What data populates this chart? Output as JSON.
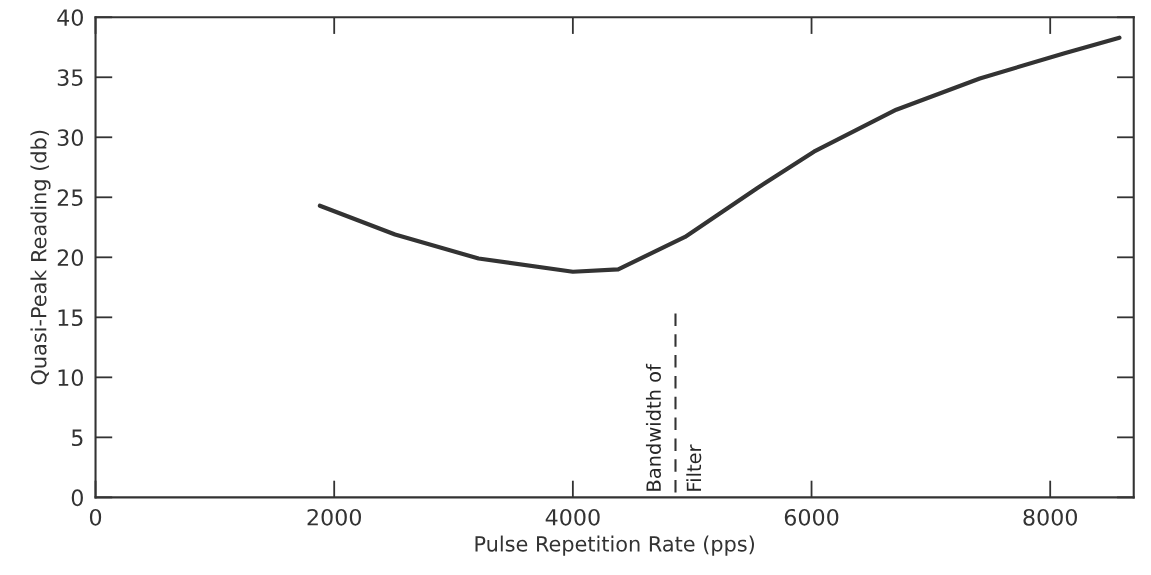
{
  "chart_data": {
    "type": "line",
    "xlabel": "Pulse Repetition Rate (pps)",
    "ylabel": "Quasi-Peak Reading (db)",
    "series": [
      {
        "color": "#333333",
        "x": [
          1880,
          2510,
          3210,
          4000,
          4380,
          4940,
          5550,
          6020,
          6710,
          7410,
          8120,
          8580
        ],
        "values": [
          24.3,
          21.9,
          19.9,
          18.8,
          19.0,
          21.7,
          25.8,
          28.8,
          32.3,
          34.9,
          37.0,
          38.3
        ]
      }
    ],
    "xlim": [
      0,
      8700
    ],
    "ylim": [
      0,
      40
    ],
    "xticks": [
      0,
      2000,
      4000,
      6000,
      8000
    ],
    "yticks": [
      0,
      5,
      10,
      15,
      20,
      25,
      30,
      35,
      40
    ],
    "ref_lines": [
      {
        "axis": "x",
        "value": 4860,
        "label": "Bandwidth of Filter",
        "line_style": "dashed",
        "color": "#333333"
      }
    ],
    "grid": false,
    "legend": false,
    "marker": "none",
    "line_style": "solid"
  }
}
